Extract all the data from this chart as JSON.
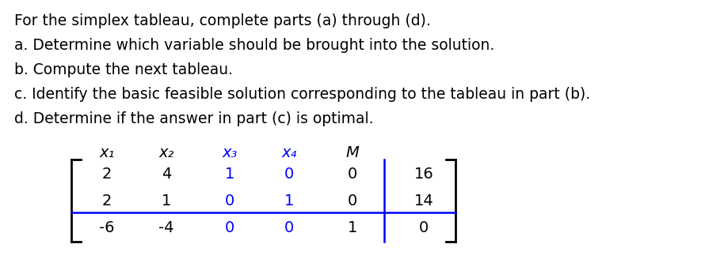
{
  "text_lines": [
    "For the simplex tableau, complete parts (a) through (d).",
    "a. Determine which variable should be brought into the solution.",
    "b. Compute the next tableau.",
    "c. Identify the basic feasible solution corresponding to the tableau in part (b).",
    "d. Determine if the answer in part (c) is optimal."
  ],
  "header_labels": [
    "x₁",
    "x₂",
    "x₃",
    "x₄",
    "M"
  ],
  "header_colors": [
    "black",
    "black",
    "blue",
    "blue",
    "black"
  ],
  "matrix": [
    [
      "2",
      "4",
      "1",
      "0",
      "0",
      "16"
    ],
    [
      "2",
      "1",
      "0",
      "1",
      "0",
      "14"
    ],
    [
      "-6",
      "-4",
      "0",
      "0",
      "1",
      "0"
    ]
  ],
  "matrix_col_colors": [
    "black",
    "black",
    "blue",
    "blue",
    "black",
    "black"
  ],
  "bg_color": "white",
  "font_size_text": 13.5,
  "font_size_matrix": 14,
  "font_size_header": 14
}
